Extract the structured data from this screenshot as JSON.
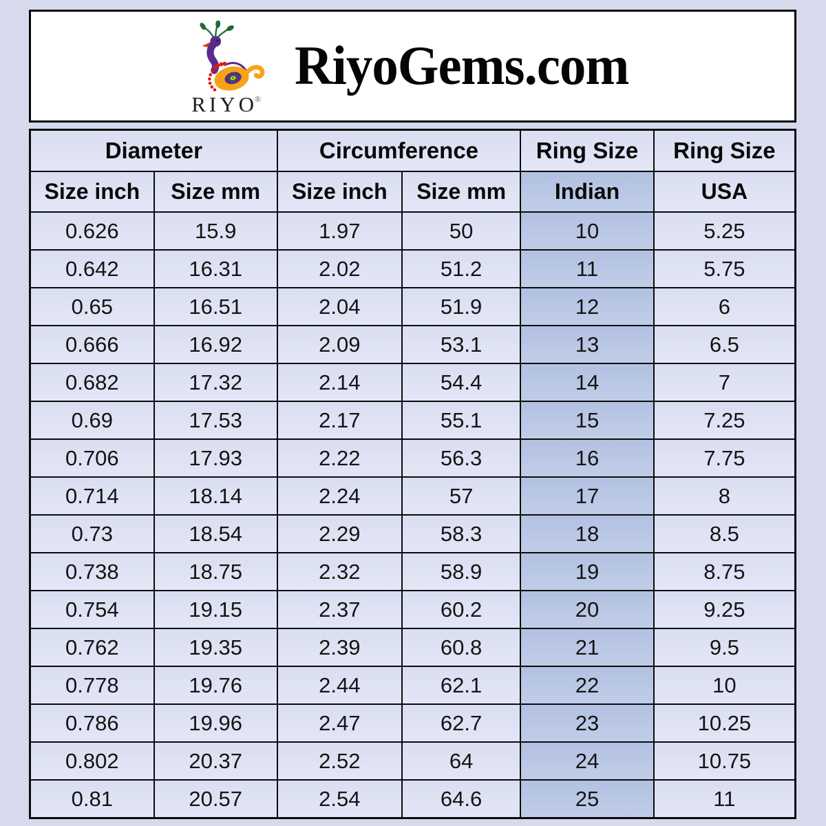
{
  "header": {
    "site_title": "RiyoGems.com",
    "logo": {
      "brand": "RIYO",
      "registered_mark": "®",
      "icon": "peacock-logo-icon"
    }
  },
  "table": {
    "group_headers": [
      {
        "label": "Diameter",
        "span": 2
      },
      {
        "label": "Circumference",
        "span": 2
      },
      {
        "label": "Ring Size",
        "span": 1
      },
      {
        "label": "Ring Size",
        "span": 1
      }
    ],
    "sub_headers": [
      "Size inch",
      "Size mm",
      "Size inch",
      "Size mm",
      "Indian",
      "USA"
    ]
  },
  "chart_data": {
    "type": "table",
    "title": "RiyoGems.com ring size conversion chart",
    "columns": [
      "Diameter Size inch",
      "Diameter Size mm",
      "Circumference Size inch",
      "Circumference Size mm",
      "Ring Size Indian",
      "Ring Size USA"
    ],
    "rows": [
      [
        0.626,
        15.9,
        1.97,
        50,
        10,
        5.25
      ],
      [
        0.642,
        16.31,
        2.02,
        51.2,
        11,
        5.75
      ],
      [
        0.65,
        16.51,
        2.04,
        51.9,
        12,
        6
      ],
      [
        0.666,
        16.92,
        2.09,
        53.1,
        13,
        6.5
      ],
      [
        0.682,
        17.32,
        2.14,
        54.4,
        14,
        7
      ],
      [
        0.69,
        17.53,
        2.17,
        55.1,
        15,
        7.25
      ],
      [
        0.706,
        17.93,
        2.22,
        56.3,
        16,
        7.75
      ],
      [
        0.714,
        18.14,
        2.24,
        57,
        17,
        8
      ],
      [
        0.73,
        18.54,
        2.29,
        58.3,
        18,
        8.5
      ],
      [
        0.738,
        18.75,
        2.32,
        58.9,
        19,
        8.75
      ],
      [
        0.754,
        19.15,
        2.37,
        60.2,
        20,
        9.25
      ],
      [
        0.762,
        19.35,
        2.39,
        60.8,
        21,
        9.5
      ],
      [
        0.778,
        19.76,
        2.44,
        62.1,
        22,
        10
      ],
      [
        0.786,
        19.96,
        2.47,
        62.7,
        23,
        10.25
      ],
      [
        0.802,
        20.37,
        2.52,
        64,
        24,
        10.75
      ],
      [
        0.81,
        20.57,
        2.54,
        64.6,
        25,
        11
      ]
    ]
  },
  "colors": {
    "page_bg": "#d6daec",
    "cell_bg": "#dee2f2",
    "indian_col_bg": "#b8c6e4",
    "border": "#0b0b0b",
    "header_box_bg": "#ffffff",
    "logo_purple": "#5a2b8c",
    "logo_orange": "#f6a318",
    "logo_green": "#1e6b34",
    "logo_red": "#e11c0e",
    "logo_yellow": "#f5d327"
  }
}
